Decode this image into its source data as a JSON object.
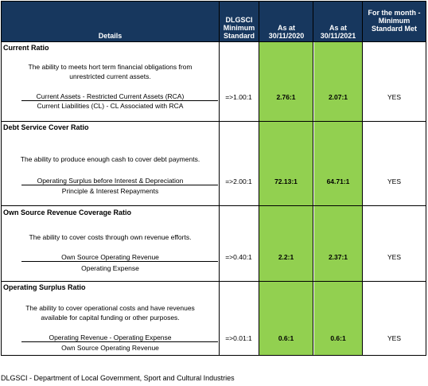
{
  "header": {
    "details": "Details",
    "standard": [
      "DLGSCI",
      "Minimum",
      "Standard"
    ],
    "as_at_2020": [
      "As at",
      "30/11/2020"
    ],
    "as_at_2021": [
      "As at",
      "30/11/2021"
    ],
    "month": [
      "For the month -",
      "Minimum",
      "Standard Met"
    ]
  },
  "ratios": [
    {
      "title": "Current Ratio",
      "desc": [
        "The ability to meets hort term financial obligations from",
        "unrestricted current assets."
      ],
      "numerator": "Current Assets - Restricted Current Assets (RCA)",
      "denominator": "Current Liabilities (CL) - CL Associated with RCA",
      "standard": "=>1.00:1",
      "v2020": "2.76:1",
      "v2021": "2.07:1",
      "met": "YES"
    },
    {
      "title": "Debt Service Cover Ratio",
      "desc": [
        "The ability to produce enough cash to cover debt payments."
      ],
      "numerator": "Operating Surplus before Interest & Depreciation",
      "denominator": "Principle & Interest Repayments",
      "standard": "=>2.00:1",
      "v2020": "72.13:1",
      "v2021": "64.71:1",
      "met": "YES"
    },
    {
      "title": "Own Source Revenue Coverage Ratio",
      "desc": [
        "The ability to cover costs through own revenue efforts."
      ],
      "numerator": "Own Source Operating Revenue",
      "denominator": "Operating Expense",
      "standard": "=>0.40:1",
      "v2020": "2.2:1",
      "v2021": "2.37:1",
      "met": "YES"
    },
    {
      "title": "Operating Surplus Ratio",
      "desc": [
        "The ability to cover operational costs and have revenues",
        "available for capital funding or other purposes."
      ],
      "numerator": "Operating Revenue - Operating Expense",
      "denominator": "Own Source Operating Revenue",
      "standard": "=>0.01:1",
      "v2020": "0.6:1",
      "v2021": "0.6:1",
      "met": "YES"
    }
  ],
  "footnote": "DLGSCI - Department of Local Government, Sport and Cultural Industries"
}
